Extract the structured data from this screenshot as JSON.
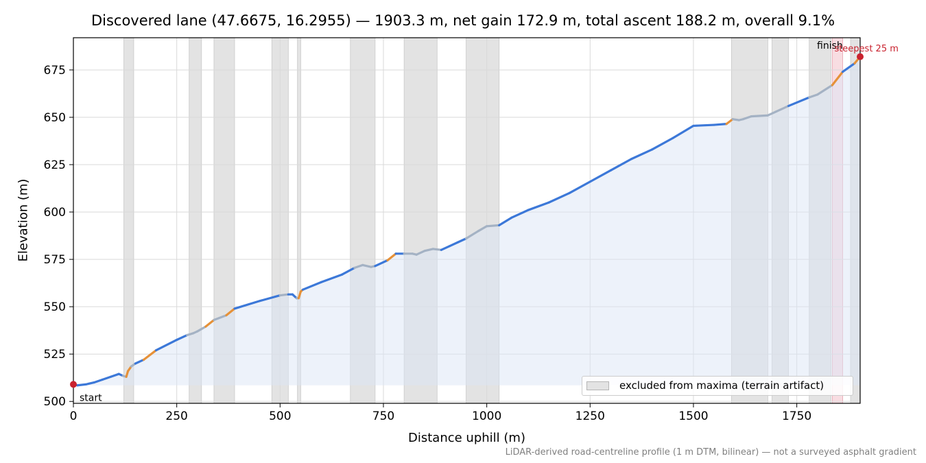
{
  "chart_data": {
    "type": "area",
    "title": "Discovered lane (47.6675, 16.2955) — 1903.3 m, net gain 172.9 m, total ascent 188.2 m, overall 9.1%",
    "xlabel": "Distance uphill (m)",
    "ylabel": "Elevation (m)",
    "xlim": [
      0,
      1903.3
    ],
    "ylim": [
      499,
      692
    ],
    "xticks": [
      0,
      250,
      500,
      750,
      1000,
      1250,
      1500,
      1750
    ],
    "yticks": [
      500,
      525,
      550,
      575,
      600,
      625,
      650,
      675
    ],
    "grid": true,
    "legend": {
      "entry": "excluded from maxima (terrain artifact)",
      "placement": "bottom-right"
    },
    "excluded_ranges": [
      [
        122,
        146
      ],
      [
        280,
        310
      ],
      [
        340,
        390
      ],
      [
        480,
        520
      ],
      [
        542,
        550
      ],
      [
        670,
        730
      ],
      [
        800,
        880
      ],
      [
        950,
        1030
      ],
      [
        1592,
        1680
      ],
      [
        1690,
        1730
      ],
      [
        1780,
        1833
      ],
      [
        1880,
        1903.3
      ]
    ],
    "steepest_segment": {
      "label": "steepest 25 m",
      "range": [
        1836,
        1861
      ]
    },
    "annotations": {
      "start": "start",
      "finish": "finish"
    },
    "gradient_colors": {
      "shallow": "#3c78d8",
      "steep": "#e69138",
      "excluded": "#a4b2c4"
    },
    "series": [
      {
        "x": [
          0,
          10,
          30,
          50,
          70,
          90,
          110,
          120,
          128,
          132,
          140,
          150,
          170,
          200,
          250,
          275,
          290,
          300,
          320,
          340,
          370,
          390,
          450,
          500,
          520,
          530,
          540,
          545,
          550,
          555,
          600,
          650,
          680,
          700,
          720,
          730,
          760,
          780,
          800,
          820,
          830,
          850,
          870,
          890,
          910,
          930,
          950,
          980,
          1000,
          1030,
          1060,
          1100,
          1150,
          1200,
          1250,
          1300,
          1350,
          1400,
          1450,
          1500,
          1550,
          1580,
          1595,
          1610,
          1620,
          1640,
          1680,
          1700,
          1730,
          1780,
          1800,
          1836,
          1861,
          1890,
          1903.3
        ],
        "y": [
          509,
          508.5,
          509,
          510,
          511.5,
          513,
          514.5,
          513.5,
          513,
          516,
          518.5,
          520,
          522,
          527,
          532.5,
          535,
          536,
          537,
          539.5,
          543,
          545.5,
          549,
          553,
          556,
          556.5,
          556.5,
          554.5,
          554.5,
          558,
          559,
          563,
          567,
          570.5,
          572,
          571,
          571.5,
          574.5,
          578,
          578,
          578,
          577.5,
          579.5,
          580.5,
          580,
          582,
          584,
          586,
          590,
          592.5,
          593,
          597,
          601,
          605,
          610,
          616,
          622,
          628,
          633,
          639,
          645.5,
          646,
          646.5,
          649,
          648.5,
          649,
          650.5,
          651,
          653,
          656,
          660.5,
          662,
          667,
          674,
          678.5,
          682
        ]
      }
    ]
  }
}
